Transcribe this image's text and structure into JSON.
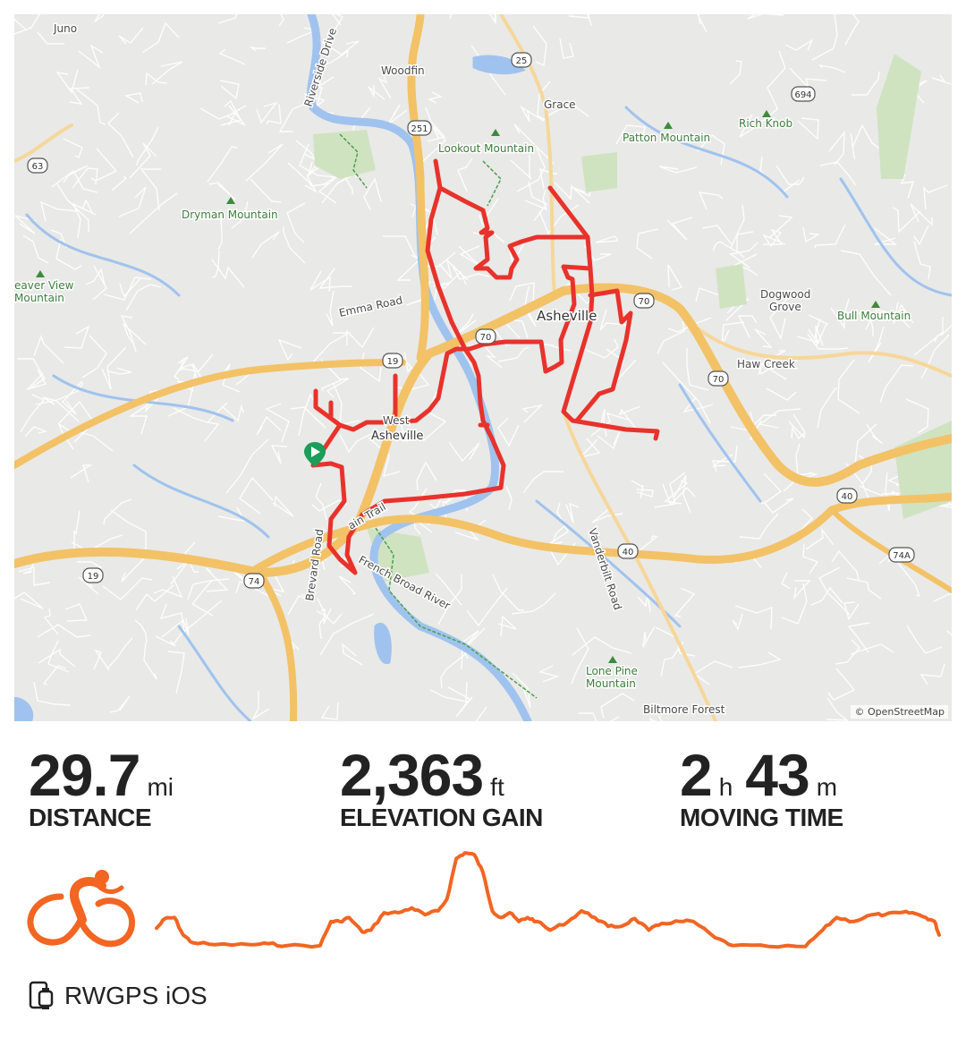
{
  "map": {
    "labels": {
      "juno": "Juno",
      "woodfin": "Woodfin",
      "riverside_drive": "Riverside Drive",
      "grace": "Grace",
      "lookout_mountain": "Lookout Mountain",
      "patton_mountain": "Patton Mountain",
      "rich_knob": "Rich Knob",
      "dryman_mountain": "Dryman Mountain",
      "beaver_view_1": "eaver View",
      "beaver_view_2": "Mountain",
      "emma_road": "Emma Road",
      "asheville": "Asheville",
      "west_1": "West",
      "west_2": "Asheville",
      "dogwood_1": "Dogwood",
      "dogwood_2": "Grove",
      "bull_mountain": "Bull Mountain",
      "haw_creek": "Haw Creek",
      "brevard_road": "Brevard Road",
      "vanderbilt_road": "Vanderbilt Road",
      "french_broad": "French Broad River",
      "trail": "ain Trail",
      "lone_pine_1": "Lone Pine",
      "lone_pine_2": "Mountain",
      "biltmore_forest": "Biltmore Forest"
    },
    "shields": [
      "25",
      "694",
      "251",
      "63",
      "70",
      "70",
      "70",
      "19",
      "19",
      "74",
      "40",
      "40",
      "74A"
    ],
    "attribution": "© OpenStreetMap",
    "route_color": "#e8322b",
    "start_marker_color": "#1a9e5a"
  },
  "stats": {
    "distance": {
      "value": "29.7",
      "unit": "mi",
      "label": "DISTANCE"
    },
    "elevation": {
      "value": "2,363",
      "unit": "ft",
      "label": "ELEVATION GAIN"
    },
    "moving_time": {
      "hours": "2",
      "h_unit": "h",
      "minutes": "43",
      "m_unit": "m",
      "label": "MOVING TIME"
    }
  },
  "activity_icon": "cycling-icon",
  "accent_color": "#f26522",
  "elevation_profile": {
    "distance_pct": [
      0,
      1.1,
      2.3,
      3.4,
      4.6,
      7.4,
      12,
      14.3,
      16.6,
      20.9,
      22.3,
      23.4,
      24.6,
      26.3,
      27.4,
      29.1,
      30.9,
      32.6,
      34.3,
      36,
      37.1,
      38.3,
      39.4,
      40.6,
      41.7,
      42.9,
      44,
      45.1,
      46.3,
      47.4,
      48.6,
      50.3,
      52.6,
      54.3,
      56,
      57.7,
      59.4,
      61.1,
      62.9,
      64.6,
      66.9,
      68.6,
      71.4,
      73.7,
      78.3,
      82.9,
      85.1,
      86.9,
      89.1,
      91.4,
      93.1,
      94.9,
      96.6,
      98.3,
      99.4,
      100
    ],
    "relative_level": [
      21,
      31,
      32,
      14,
      6,
      4,
      4,
      5,
      3,
      3,
      28,
      28,
      32,
      17,
      19,
      37,
      37,
      42,
      35,
      39,
      51,
      93,
      99,
      97,
      79,
      39,
      32,
      37,
      28,
      32,
      28,
      19,
      28,
      39,
      32,
      23,
      23,
      31,
      19,
      26,
      28,
      28,
      11,
      3,
      2,
      2,
      19,
      32,
      28,
      35,
      35,
      37,
      37,
      32,
      28,
      14
    ]
  },
  "footer": {
    "device_icon": "phone-watch-icon",
    "source": "RWGPS iOS"
  }
}
